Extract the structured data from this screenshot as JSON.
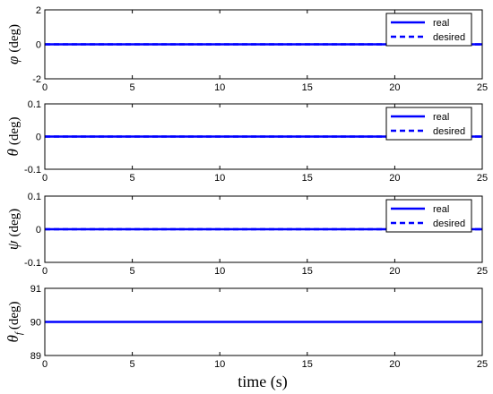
{
  "chart_data": [
    {
      "type": "line",
      "ylabel": {
        "symbol": "φ",
        "sub": "",
        "unit": "(deg)"
      },
      "xlim": [
        0,
        25
      ],
      "ylim": [
        -2,
        2
      ],
      "xticks": [
        0,
        5,
        10,
        15,
        20,
        25
      ],
      "yticks": [
        -2,
        0,
        2
      ],
      "yticklabels": [
        "-2",
        "0",
        "2"
      ],
      "legend": {
        "placement": "top-right",
        "entries": [
          "real",
          "desired"
        ]
      },
      "series": [
        {
          "name": "real",
          "style": "solid",
          "color": "#0000ff",
          "x": [
            0,
            25
          ],
          "y": [
            0,
            0
          ]
        },
        {
          "name": "desired",
          "style": "dashed",
          "color": "#0000ff",
          "x": [
            0,
            25
          ],
          "y": [
            0,
            0
          ]
        }
      ]
    },
    {
      "type": "line",
      "ylabel": {
        "symbol": "θ",
        "sub": "",
        "unit": "(deg)"
      },
      "xlim": [
        0,
        25
      ],
      "ylim": [
        -0.1,
        0.1
      ],
      "xticks": [
        0,
        5,
        10,
        15,
        20,
        25
      ],
      "yticks": [
        -0.1,
        0,
        0.1
      ],
      "yticklabels": [
        "-0.1",
        "0",
        "0.1"
      ],
      "legend": {
        "placement": "top-right",
        "entries": [
          "real",
          "desired"
        ]
      },
      "series": [
        {
          "name": "real",
          "style": "solid",
          "color": "#0000ff",
          "x": [
            0,
            25
          ],
          "y": [
            0,
            0
          ]
        },
        {
          "name": "desired",
          "style": "dashed",
          "color": "#0000ff",
          "x": [
            0,
            25
          ],
          "y": [
            0,
            0
          ]
        }
      ]
    },
    {
      "type": "line",
      "ylabel": {
        "symbol": "ψ",
        "sub": "",
        "unit": "(deg)"
      },
      "xlim": [
        0,
        25
      ],
      "ylim": [
        -0.1,
        0.1
      ],
      "xticks": [
        0,
        5,
        10,
        15,
        20,
        25
      ],
      "yticks": [
        -0.1,
        0,
        0.1
      ],
      "yticklabels": [
        "-0.1",
        "0",
        "0.1"
      ],
      "legend": {
        "placement": "top-right",
        "entries": [
          "real",
          "desired"
        ]
      },
      "series": [
        {
          "name": "real",
          "style": "solid",
          "color": "#0000ff",
          "x": [
            0,
            25
          ],
          "y": [
            0,
            0
          ]
        },
        {
          "name": "desired",
          "style": "dashed",
          "color": "#0000ff",
          "x": [
            0,
            25
          ],
          "y": [
            0,
            0
          ]
        }
      ]
    },
    {
      "type": "line",
      "ylabel": {
        "symbol": "θ",
        "sub": "f",
        "unit": "(deg)"
      },
      "xlim": [
        0,
        25
      ],
      "ylim": [
        89,
        91
      ],
      "xticks": [
        0,
        5,
        10,
        15,
        20,
        25
      ],
      "yticks": [
        89,
        90,
        91
      ],
      "yticklabels": [
        "89",
        "90",
        "91"
      ],
      "legend": null,
      "series": [
        {
          "style": "solid",
          "color": "#0000ff",
          "x": [
            0,
            25
          ],
          "y": [
            90,
            90
          ]
        }
      ]
    }
  ],
  "xlabel": "time (s)"
}
